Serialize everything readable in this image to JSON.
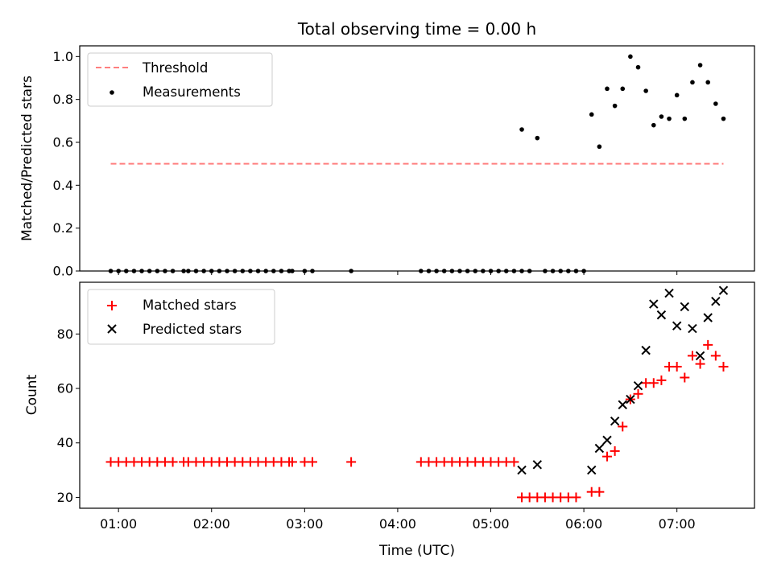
{
  "chart_data": [
    {
      "type": "scatter",
      "title": "Total observing time = 0.00 h",
      "xlabel": "",
      "ylabel": "Matched/Predicted stars",
      "xlim": [
        "00:35",
        "07:50"
      ],
      "ylim": [
        0,
        1.05
      ],
      "yticks": [
        0,
        0.2,
        0.4,
        0.6,
        0.8,
        1.0
      ],
      "ytick_labels": [
        "0.0",
        "0.2",
        "0.4",
        "0.6",
        "0.8",
        "1.0"
      ],
      "legend_position": "upper left",
      "threshold": {
        "name": "Threshold",
        "value": 0.5,
        "x": [
          "00:55",
          "07:30"
        ],
        "color": "#ff7f7f",
        "style": "dashed"
      },
      "series": [
        {
          "name": "Measurements",
          "color": "#000000",
          "marker": "dot",
          "x": [
            "00:55",
            "01:00",
            "01:05",
            "01:10",
            "01:15",
            "01:20",
            "01:25",
            "01:30",
            "01:35",
            "01:42",
            "01:45",
            "01:50",
            "01:55",
            "02:00",
            "02:05",
            "02:10",
            "02:15",
            "02:20",
            "02:25",
            "02:30",
            "02:35",
            "02:40",
            "02:45",
            "02:50",
            "02:52",
            "03:00",
            "03:05",
            "03:30",
            "04:15",
            "04:20",
            "04:25",
            "04:30",
            "04:35",
            "04:40",
            "04:45",
            "04:50",
            "04:55",
            "05:00",
            "05:05",
            "05:10",
            "05:15",
            "05:20",
            "05:25",
            "05:35",
            "05:40",
            "05:45",
            "05:50",
            "05:55",
            "06:00",
            "05:20",
            "05:30",
            "06:05",
            "06:10",
            "06:15",
            "06:20",
            "06:25",
            "06:30",
            "06:35",
            "06:40",
            "06:45",
            "06:50",
            "06:55",
            "07:00",
            "07:05",
            "07:10",
            "07:15",
            "07:20",
            "07:25",
            "07:30"
          ],
          "y": [
            0,
            0,
            0,
            0,
            0,
            0,
            0,
            0,
            0,
            0,
            0,
            0,
            0,
            0,
            0,
            0,
            0,
            0,
            0,
            0,
            0,
            0,
            0,
            0,
            0,
            0,
            0,
            0,
            0,
            0,
            0,
            0,
            0,
            0,
            0,
            0,
            0,
            0,
            0,
            0,
            0,
            0,
            0,
            0,
            0,
            0,
            0,
            0,
            0,
            0.66,
            0.62,
            0.73,
            0.58,
            0.85,
            0.77,
            0.85,
            1.0,
            0.95,
            0.84,
            0.68,
            0.72,
            0.71,
            0.82,
            0.71,
            0.88,
            0.96,
            0.88,
            0.78,
            0.71
          ]
        }
      ]
    },
    {
      "type": "scatter",
      "xlabel": "Time (UTC)",
      "ylabel": "Count",
      "xlim": [
        "00:35",
        "07:50"
      ],
      "ylim": [
        16,
        99
      ],
      "xticks": [
        "01:00",
        "02:00",
        "03:00",
        "04:00",
        "05:00",
        "06:00",
        "07:00"
      ],
      "yticks": [
        20,
        40,
        60,
        80
      ],
      "ytick_labels": [
        "20",
        "40",
        "60",
        "80"
      ],
      "legend_position": "upper left",
      "series": [
        {
          "name": "Matched stars",
          "color": "#ff0000",
          "marker": "plus",
          "x": [
            "00:55",
            "01:00",
            "01:05",
            "01:10",
            "01:15",
            "01:20",
            "01:25",
            "01:30",
            "01:35",
            "01:42",
            "01:45",
            "01:50",
            "01:55",
            "02:00",
            "02:05",
            "02:10",
            "02:15",
            "02:20",
            "02:25",
            "02:30",
            "02:35",
            "02:40",
            "02:45",
            "02:50",
            "02:52",
            "03:00",
            "03:05",
            "03:30",
            "04:15",
            "04:20",
            "04:25",
            "04:30",
            "04:35",
            "04:40",
            "04:45",
            "04:50",
            "04:55",
            "05:00",
            "05:05",
            "05:10",
            "05:15",
            "05:20",
            "05:25",
            "05:30",
            "05:35",
            "05:40",
            "05:45",
            "05:50",
            "05:55",
            "06:05",
            "06:10",
            "06:15",
            "06:20",
            "06:25",
            "06:30",
            "06:35",
            "06:40",
            "06:45",
            "06:50",
            "06:55",
            "07:00",
            "07:05",
            "07:10",
            "07:15",
            "07:20",
            "07:25",
            "07:30"
          ],
          "y": [
            33,
            33,
            33,
            33,
            33,
            33,
            33,
            33,
            33,
            33,
            33,
            33,
            33,
            33,
            33,
            33,
            33,
            33,
            33,
            33,
            33,
            33,
            33,
            33,
            33,
            33,
            33,
            33,
            33,
            33,
            33,
            33,
            33,
            33,
            33,
            33,
            33,
            33,
            33,
            33,
            33,
            20,
            20,
            20,
            20,
            20,
            20,
            20,
            20,
            22,
            22,
            35,
            37,
            46,
            56,
            58,
            62,
            62,
            63,
            68,
            68,
            64,
            72,
            69,
            76,
            72,
            68
          ]
        },
        {
          "name": "Predicted stars",
          "color": "#000000",
          "marker": "x",
          "x": [
            "05:20",
            "05:30",
            "06:05",
            "06:10",
            "06:15",
            "06:20",
            "06:25",
            "06:30",
            "06:35",
            "06:40",
            "06:45",
            "06:50",
            "06:55",
            "07:00",
            "07:05",
            "07:10",
            "07:15",
            "07:20",
            "07:25",
            "07:30"
          ],
          "y": [
            30,
            32,
            30,
            38,
            41,
            48,
            54,
            56,
            61,
            74,
            91,
            87,
            95,
            83,
            90,
            82,
            72,
            86,
            92,
            96
          ]
        }
      ]
    }
  ]
}
